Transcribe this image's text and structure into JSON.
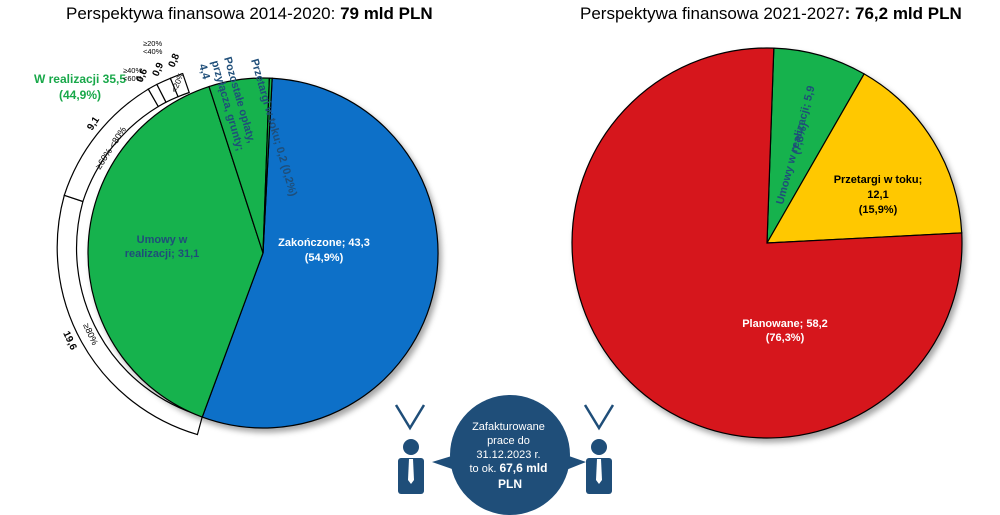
{
  "titles": {
    "left_prefix": "Perspektywa finansowa 2014-2020: ",
    "left_value": "79 mld PLN",
    "right_prefix": "Perspektywa finansowa 2021-2027",
    "right_value": ": 76,2 mld PLN"
  },
  "colors": {
    "blue": "#0a6fc8",
    "green": "#17b24d",
    "red": "#d6121b",
    "yellow": "#ffc800",
    "navy": "#1f4e79",
    "green_text": "#19a84a"
  },
  "chart_data": [
    {
      "type": "pie",
      "title": "Perspektywa finansowa 2014-2020: 79 mld PLN",
      "total": 79,
      "slices": [
        {
          "name": "Zakończone",
          "value": 43.3,
          "label": "Zakończone; 43,3",
          "pct": "(54,9%)",
          "color": "#0a6fc8"
        },
        {
          "name": "Umowy w realizacji",
          "value": 31.1,
          "label": "Umowy w realizacji; 31,1",
          "color": "#17b24d"
        },
        {
          "name": "Pozostałe opłaty, przyłącza, grunty",
          "value": 4.4,
          "label": "Pozostałe opłaty, przyłącza, grunty; 4,4",
          "color": "#17b24d"
        },
        {
          "name": "Przetargi w toku",
          "value": 0.2,
          "label": "Przetargi w toku; 0,2 (0,2%)",
          "color": "#17b24d"
        }
      ],
      "group_annotation": {
        "label": "W realizacji 35,5",
        "pct": "(44,9%)"
      },
      "advancement_breakdown": [
        {
          "range": "≥80%",
          "value": 19.6,
          "label": "19,6"
        },
        {
          "range": "≥60% <80%",
          "value": 9.1,
          "label": "9,1"
        },
        {
          "range": "≥40% <60%",
          "value": 0.6,
          "label": "0,6"
        },
        {
          "range": "≥20% <40%",
          "value": 0.9,
          "label": "0,9"
        },
        {
          "range": "<20%",
          "value": 0.8,
          "label": "0,8"
        }
      ]
    },
    {
      "type": "pie",
      "title": "Perspektywa finansowa 2021-2027: 76,2 mld PLN",
      "total": 76.2,
      "slices": [
        {
          "name": "Umowy w realizacji",
          "value": 5.9,
          "label": "Umowy w realizacji; 5,9",
          "pct": "(7,8%)",
          "color": "#17b24d"
        },
        {
          "name": "Przetargi w toku",
          "value": 12.1,
          "label1": "Przetargi w toku;",
          "label2": "12,1",
          "pct": "(15,9%)",
          "color": "#ffc800"
        },
        {
          "name": "Planowane",
          "value": 58.2,
          "label": "Planowane; 58,2",
          "pct": "(76,3%)",
          "color": "#d6121b"
        }
      ]
    }
  ],
  "callout": {
    "line1": "Zafakturowane",
    "line2": "prace do",
    "line3": "31.12.2023 r.",
    "line4_prefix": "to ok. ",
    "line4_bold": "67,6 mld",
    "line5": "PLN"
  }
}
